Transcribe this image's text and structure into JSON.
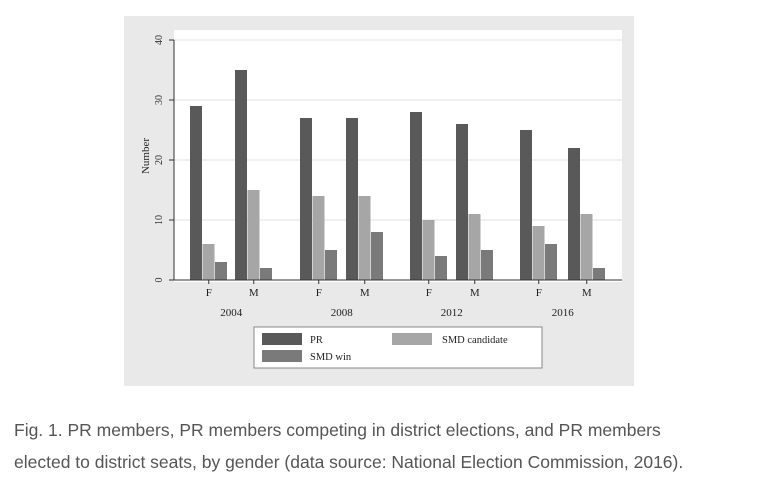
{
  "chart_data": {
    "type": "bar",
    "title": "",
    "xlabel": "",
    "ylabel": "Number",
    "ylim": [
      0,
      40
    ],
    "yticks": [
      0,
      10,
      20,
      30,
      40
    ],
    "groups": [
      {
        "year": "2004",
        "genders": [
          "F",
          "M"
        ]
      },
      {
        "year": "2008",
        "genders": [
          "F",
          "M"
        ]
      },
      {
        "year": "2012",
        "genders": [
          "F",
          "M"
        ]
      },
      {
        "year": "2016",
        "genders": [
          "F",
          "M"
        ]
      }
    ],
    "categories": [
      "2004 F",
      "2004 M",
      "2008 F",
      "2008 M",
      "2012 F",
      "2012 M",
      "2016 F",
      "2016 M"
    ],
    "series": [
      {
        "name": "PR",
        "color": "#595959",
        "values": [
          29,
          35,
          27,
          27,
          28,
          26,
          25,
          22
        ]
      },
      {
        "name": "SMD candidate",
        "color": "#a6a6a6",
        "values": [
          6,
          15,
          14,
          14,
          10,
          11,
          9,
          11
        ]
      },
      {
        "name": "SMD win",
        "color": "#7a7a7a",
        "values": [
          3,
          2,
          5,
          8,
          4,
          5,
          6,
          2
        ]
      }
    ],
    "legend_position": "bottom",
    "grid": true
  },
  "caption": {
    "line1": "Fig. 1. PR members, PR members competing in district elections, and PR members",
    "line2": "elected to district seats, by gender (data source: National Election Commission, 2016)."
  }
}
